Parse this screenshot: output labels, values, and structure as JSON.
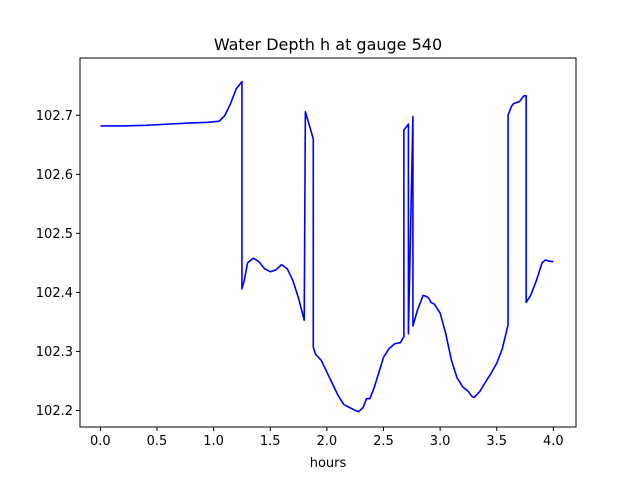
{
  "chart_data": {
    "type": "line",
    "title": "Water Depth h at gauge 540",
    "xlabel": "hours",
    "ylabel": "",
    "xlim": [
      -0.18,
      4.2
    ],
    "ylim": [
      102.172,
      102.797
    ],
    "xticks": [
      0.0,
      0.5,
      1.0,
      1.5,
      2.0,
      2.5,
      3.0,
      3.5,
      4.0
    ],
    "xtick_labels": [
      "0.0",
      "0.5",
      "1.0",
      "1.5",
      "2.0",
      "2.5",
      "3.0",
      "3.5",
      "4.0"
    ],
    "yticks": [
      102.2,
      102.3,
      102.4,
      102.5,
      102.6,
      102.7
    ],
    "ytick_labels": [
      "102.2",
      "102.3",
      "102.4",
      "102.5",
      "102.6",
      "102.7"
    ],
    "grid": false,
    "series": [
      {
        "color": "#0000ff",
        "x": [
          0.0,
          0.2,
          0.4,
          0.6,
          0.8,
          0.95,
          1.05,
          1.1,
          1.15,
          1.2,
          1.25,
          1.25,
          1.27,
          1.3,
          1.35,
          1.4,
          1.45,
          1.5,
          1.55,
          1.6,
          1.65,
          1.7,
          1.75,
          1.8,
          1.81,
          1.88,
          1.88,
          1.9,
          1.95,
          2.0,
          2.05,
          2.1,
          2.15,
          2.2,
          2.25,
          2.28,
          2.32,
          2.35,
          2.38,
          2.42,
          2.46,
          2.5,
          2.55,
          2.6,
          2.65,
          2.68,
          2.68,
          2.72,
          2.72,
          2.76,
          2.76,
          2.8,
          2.85,
          2.88,
          2.9,
          2.92,
          2.95,
          3.0,
          3.05,
          3.1,
          3.15,
          3.2,
          3.25,
          3.28,
          3.3,
          3.35,
          3.4,
          3.45,
          3.5,
          3.55,
          3.6,
          3.6,
          3.63,
          3.65,
          3.7,
          3.74,
          3.76,
          3.76,
          3.8,
          3.85,
          3.9,
          3.93,
          3.96,
          4.0
        ],
        "y": [
          102.682,
          102.682,
          102.683,
          102.685,
          102.687,
          102.688,
          102.69,
          102.7,
          102.72,
          102.745,
          102.757,
          102.406,
          102.42,
          102.45,
          102.458,
          102.452,
          102.44,
          102.435,
          102.438,
          102.447,
          102.44,
          102.42,
          102.39,
          102.353,
          102.706,
          102.66,
          102.307,
          102.295,
          102.285,
          102.265,
          102.245,
          102.225,
          102.21,
          102.205,
          102.2,
          102.198,
          102.205,
          102.22,
          102.22,
          102.24,
          102.265,
          102.29,
          102.305,
          102.313,
          102.315,
          102.325,
          102.675,
          102.685,
          102.33,
          102.698,
          102.343,
          102.37,
          102.395,
          102.393,
          102.39,
          102.383,
          102.38,
          102.365,
          102.33,
          102.285,
          102.255,
          102.24,
          102.232,
          102.224,
          102.222,
          102.232,
          102.248,
          102.263,
          102.28,
          102.305,
          102.345,
          102.7,
          102.715,
          102.72,
          102.723,
          102.733,
          102.733,
          102.383,
          102.395,
          102.42,
          102.45,
          102.455,
          102.453,
          102.452
        ]
      }
    ]
  }
}
